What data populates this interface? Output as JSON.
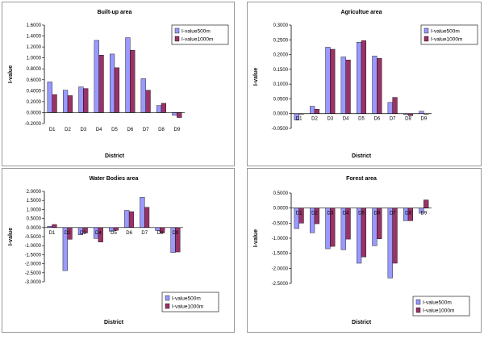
{
  "colors": {
    "series1": "#9999ff",
    "series2": "#993366",
    "border": "#000000",
    "zero": "#666666"
  },
  "chart_data": [
    {
      "type": "bar",
      "title": "Built-up area",
      "xlabel": "District",
      "ylabel": "I-value",
      "categories": [
        "D1",
        "D2",
        "D3",
        "D4",
        "D5",
        "D6",
        "D7",
        "D8",
        "D9"
      ],
      "ylim": [
        -0.2,
        1.6
      ],
      "yticks": [
        "-0.2000",
        "0.0000",
        "0.2000",
        "0.4000",
        "0.6000",
        "0.8000",
        "1.0000",
        "1.2000",
        "1.4000",
        "1.6000"
      ],
      "legend_position": "top-right",
      "series": [
        {
          "name": "I-value500m",
          "values": [
            0.56,
            0.41,
            0.47,
            1.32,
            1.07,
            1.37,
            0.62,
            0.13,
            -0.05
          ]
        },
        {
          "name": "I-value1000m",
          "values": [
            0.33,
            0.31,
            0.44,
            1.05,
            0.82,
            1.14,
            0.41,
            0.17,
            -0.09
          ]
        }
      ]
    },
    {
      "type": "bar",
      "title": "Agricultue area",
      "xlabel": "District",
      "ylabel": "I-value",
      "categories": [
        "D1",
        "D2",
        "D3",
        "D4",
        "D5",
        "D6",
        "D7",
        "D8",
        "D9"
      ],
      "ylim": [
        -0.05,
        0.3
      ],
      "yticks": [
        "-0.0500",
        "0.0000",
        "0.0500",
        "0.1000",
        "0.1500",
        "0.2000",
        "0.2500",
        "0.3000"
      ],
      "legend_position": "top-right",
      "series": [
        {
          "name": "I-value500m",
          "values": [
            -0.022,
            0.025,
            0.225,
            0.192,
            0.242,
            0.195,
            0.038,
            -0.003,
            0.008
          ]
        },
        {
          "name": "I-value1000m",
          "values": [
            -0.002,
            0.015,
            0.218,
            0.182,
            0.247,
            0.187,
            0.055,
            -0.007,
            -0.002
          ]
        }
      ]
    },
    {
      "type": "bar",
      "title": "Water Bodies area",
      "xlabel": "District",
      "ylabel": "I-value",
      "categories": [
        "D1",
        "D2",
        "D3",
        "D4",
        "D5",
        "D6",
        "D7",
        "D8",
        "D9"
      ],
      "ylim": [
        -3.0,
        2.0
      ],
      "yticks": [
        "-3.0000",
        "-2.5000",
        "-2.0000",
        "-1.5000",
        "-1.0000",
        "-0.5000",
        "0.0000",
        "0.5000",
        "1.0000",
        "1.5000",
        "2.0000"
      ],
      "legend_position": "bottom-right",
      "series": [
        {
          "name": "I-value500m",
          "values": [
            0.07,
            -2.38,
            -0.4,
            -0.6,
            -0.2,
            0.95,
            1.68,
            -0.17,
            -1.38
          ]
        },
        {
          "name": "I-value1000m",
          "values": [
            0.17,
            -0.65,
            -0.3,
            -0.8,
            -0.15,
            0.88,
            1.12,
            -0.3,
            -1.35
          ]
        }
      ]
    },
    {
      "type": "bar",
      "title": "Forest area",
      "xlabel": "District",
      "ylabel": "I-value",
      "categories": [
        "D1",
        "D2",
        "D3",
        "D4",
        "D5",
        "D6",
        "D7",
        "D8",
        "D9"
      ],
      "ylim": [
        -2.5,
        0.5
      ],
      "yticks": [
        "-2.5000",
        "-2.0000",
        "-1.5000",
        "-1.0000",
        "-0.5000",
        "0.0000",
        "0.5000"
      ],
      "legend_position": "bottom-right",
      "series": [
        {
          "name": "I-value500m",
          "values": [
            -0.68,
            -0.82,
            -1.35,
            -1.38,
            -1.83,
            -1.25,
            -2.32,
            -0.42,
            -0.17
          ]
        },
        {
          "name": "I-value1000m",
          "values": [
            -0.5,
            -0.52,
            -1.27,
            -1.03,
            -1.62,
            -1.02,
            -1.83,
            -0.42,
            0.27
          ]
        }
      ]
    }
  ]
}
